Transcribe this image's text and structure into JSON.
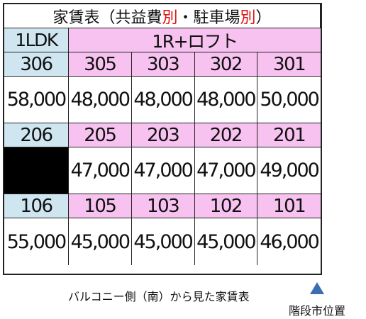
{
  "title": {
    "prefix": "家賃表（共益費",
    "betsu1": "別",
    "mid": "・駐車場",
    "betsu2": "別",
    "suffix": "）"
  },
  "types": {
    "left": "1LDK",
    "right": "1R+ロフト"
  },
  "floors": [
    {
      "rooms": [
        "306",
        "305",
        "303",
        "302",
        "301"
      ],
      "prices": [
        "58,000",
        "48,000",
        "48,000",
        "48,000",
        "50,000"
      ]
    },
    {
      "rooms": [
        "206",
        "205",
        "203",
        "202",
        "201"
      ],
      "prices": [
        "",
        "47,000",
        "47,000",
        "47,000",
        "49,000"
      ]
    },
    {
      "rooms": [
        "106",
        "105",
        "103",
        "102",
        "101"
      ],
      "prices": [
        "55,000",
        "45,000",
        "45,000",
        "45,000",
        "46,000"
      ]
    }
  ],
  "caption": "バルコニー側（南）から見た家賃表",
  "stair_label": "階段市位置",
  "colors": {
    "blue": "#cfe6f1",
    "pink": "#f7c2f0",
    "red": "#e01010",
    "marker": "#3c6fb0"
  }
}
